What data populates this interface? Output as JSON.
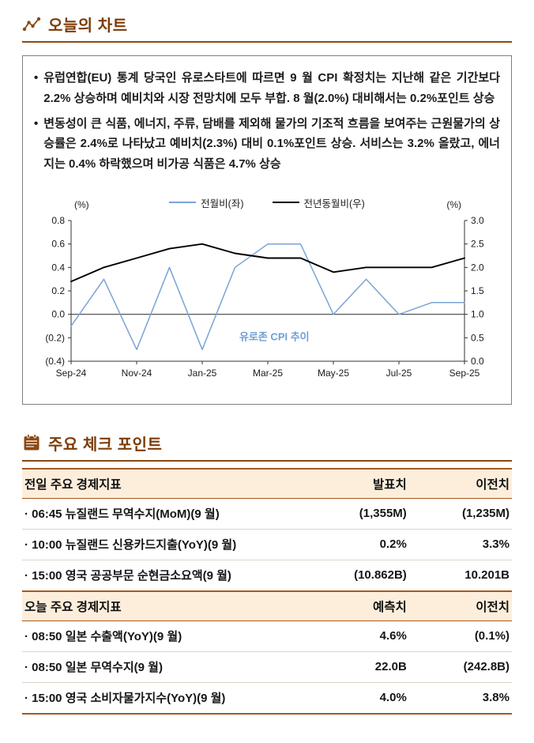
{
  "theme": {
    "accent_brown": "#8A4A15",
    "header_text": "#7B3C08",
    "table_header_bg": "#FDEEDC",
    "table_border_brown": "#A8581C",
    "box_border": "#7F7F7F"
  },
  "sections": {
    "chart_section": {
      "title": "오늘의 차트",
      "bullets": [
        "유럽연합(EU) 통계 당국인 유로스타트에 따르면 9 월 CPI 확정치는 지난해 같은 기간보다 2.2% 상승하며 예비치와 시장 전망치에 모두 부합. 8 월(2.0%) 대비해서는 0.2%포인트 상승",
        "변동성이 큰 식품, 에너지, 주류, 담배를 제외해 물가의 기조적 흐름을 보여주는 근원물가의 상승률은 2.4%로 나타났고 예비치(2.3%) 대비 0.1%포인트 상승. 서비스는 3.2% 올랐고, 에너지는 0.4% 하락했으며 비가공 식품은 4.7% 상승"
      ]
    },
    "check_section": {
      "title": "주요 체크 포인트"
    }
  },
  "chart_data": {
    "type": "line",
    "annotation": {
      "text": "유로존 CPI 추이",
      "color": "#6E9FD4",
      "x_index": 6.2,
      "y_left": -0.22
    },
    "x": [
      "Sep-24",
      "Oct-24",
      "Nov-24",
      "Dec-24",
      "Jan-25",
      "Feb-25",
      "Mar-25",
      "Apr-25",
      "May-25",
      "Jun-25",
      "Jul-25",
      "Aug-25",
      "Sep-25"
    ],
    "x_ticks": [
      [
        0,
        "Sep-24"
      ],
      [
        2,
        "Nov-24"
      ],
      [
        4,
        "Jan-25"
      ],
      [
        6,
        "Mar-25"
      ],
      [
        8,
        "May-25"
      ],
      [
        10,
        "Jul-25"
      ],
      [
        12,
        "Sep-25"
      ]
    ],
    "left_axis": {
      "label": "(%)",
      "min": -0.4,
      "max": 0.8,
      "ticks": [
        [
          0.8,
          "0.8"
        ],
        [
          0.6,
          "0.6"
        ],
        [
          0.4,
          "0.4"
        ],
        [
          0.2,
          "0.2"
        ],
        [
          0,
          "0.0"
        ],
        [
          -0.2,
          "(0.2)"
        ],
        [
          -0.4,
          "(0.4)"
        ]
      ]
    },
    "right_axis": {
      "label": "(%)",
      "min": 0,
      "max": 3,
      "ticks": [
        [
          3,
          "3.0"
        ],
        [
          2.5,
          "2.5"
        ],
        [
          2,
          "2.0"
        ],
        [
          1.5,
          "1.5"
        ],
        [
          1,
          "1.0"
        ],
        [
          0.5,
          "0.5"
        ],
        [
          0,
          "0.0"
        ]
      ]
    },
    "series": [
      {
        "name": "전월비(좌)",
        "axis": "left",
        "color": "#7AA3D6",
        "values": [
          -0.1,
          0.3,
          -0.3,
          0.4,
          -0.3,
          0.4,
          0.6,
          0.6,
          0.0,
          0.3,
          0.0,
          0.1,
          0.1
        ]
      },
      {
        "name": "전년동월비(우)",
        "axis": "right",
        "color": "#000000",
        "values": [
          1.7,
          2.0,
          2.2,
          2.4,
          2.5,
          2.3,
          2.2,
          2.2,
          1.9,
          2.0,
          2.0,
          2.0,
          2.2
        ]
      }
    ],
    "grid": false,
    "legend_position": "top"
  },
  "table": {
    "groups": [
      {
        "header": {
          "label": "전일 주요 경제지표",
          "col1": "발표치",
          "col2": "이전치"
        },
        "rows": [
          [
            "· 06:45 뉴질랜드 무역수지(MoM)(9 월)",
            "(1,355M)",
            "(1,235M)"
          ],
          [
            "· 10:00 뉴질랜드 신용카드지출(YoY)(9 월)",
            "0.2%",
            "3.3%"
          ],
          [
            "· 15:00 영국 공공부문 순현금소요액(9 월)",
            "(10.862B)",
            "10.201B"
          ]
        ]
      },
      {
        "header": {
          "label": "오늘 주요 경제지표",
          "col1": "예측치",
          "col2": "이전치"
        },
        "rows": [
          [
            "· 08:50 일본 수출액(YoY)(9 월)",
            "4.6%",
            "(0.1%)"
          ],
          [
            "· 08:50 일본 무역수지(9 월)",
            "22.0B",
            "(242.8B)"
          ],
          [
            "· 15:00 영국 소비자물가지수(YoY)(9 월)",
            "4.0%",
            "3.8%"
          ]
        ]
      }
    ]
  }
}
